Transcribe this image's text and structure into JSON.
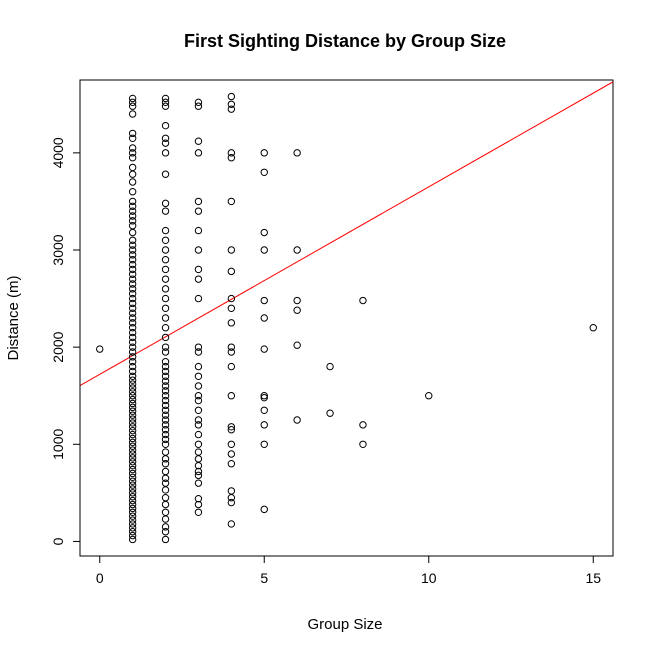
{
  "chart_data": {
    "type": "scatter",
    "title": "First Sighting Distance by Group Size",
    "xlabel": "Group Size",
    "ylabel": "Distance (m)",
    "xlim": [
      -0.6,
      15.6
    ],
    "ylim": [
      -150,
      4750
    ],
    "x_ticks": [
      0,
      5,
      10,
      15
    ],
    "y_ticks": [
      0,
      1000,
      2000,
      3000,
      4000
    ],
    "grid": false,
    "point_color": "#000000",
    "regression_line": {
      "color": "#ff0000",
      "intercept": 1720,
      "slope": 193
    },
    "points": [
      [
        0,
        1980
      ],
      [
        1,
        20
      ],
      [
        1,
        60
      ],
      [
        1,
        100
      ],
      [
        1,
        140
      ],
      [
        1,
        180
      ],
      [
        1,
        220
      ],
      [
        1,
        260
      ],
      [
        1,
        300
      ],
      [
        1,
        340
      ],
      [
        1,
        380
      ],
      [
        1,
        420
      ],
      [
        1,
        460
      ],
      [
        1,
        500
      ],
      [
        1,
        540
      ],
      [
        1,
        580
      ],
      [
        1,
        620
      ],
      [
        1,
        660
      ],
      [
        1,
        700
      ],
      [
        1,
        740
      ],
      [
        1,
        780
      ],
      [
        1,
        820
      ],
      [
        1,
        860
      ],
      [
        1,
        900
      ],
      [
        1,
        940
      ],
      [
        1,
        980
      ],
      [
        1,
        1020
      ],
      [
        1,
        1060
      ],
      [
        1,
        1100
      ],
      [
        1,
        1140
      ],
      [
        1,
        1180
      ],
      [
        1,
        1220
      ],
      [
        1,
        1260
      ],
      [
        1,
        1300
      ],
      [
        1,
        1340
      ],
      [
        1,
        1380
      ],
      [
        1,
        1420
      ],
      [
        1,
        1460
      ],
      [
        1,
        1500
      ],
      [
        1,
        1540
      ],
      [
        1,
        1580
      ],
      [
        1,
        1620
      ],
      [
        1,
        1660
      ],
      [
        1,
        1700
      ],
      [
        1,
        1750
      ],
      [
        1,
        1800
      ],
      [
        1,
        1850
      ],
      [
        1,
        1900
      ],
      [
        1,
        1950
      ],
      [
        1,
        2000
      ],
      [
        1,
        2050
      ],
      [
        1,
        2100
      ],
      [
        1,
        2150
      ],
      [
        1,
        2200
      ],
      [
        1,
        2250
      ],
      [
        1,
        2300
      ],
      [
        1,
        2350
      ],
      [
        1,
        2400
      ],
      [
        1,
        2450
      ],
      [
        1,
        2500
      ],
      [
        1,
        2550
      ],
      [
        1,
        2600
      ],
      [
        1,
        2650
      ],
      [
        1,
        2700
      ],
      [
        1,
        2750
      ],
      [
        1,
        2800
      ],
      [
        1,
        2850
      ],
      [
        1,
        2900
      ],
      [
        1,
        2950
      ],
      [
        1,
        3000
      ],
      [
        1,
        3050
      ],
      [
        1,
        3100
      ],
      [
        1,
        3180
      ],
      [
        1,
        3250
      ],
      [
        1,
        3300
      ],
      [
        1,
        3350
      ],
      [
        1,
        3400
      ],
      [
        1,
        3450
      ],
      [
        1,
        3500
      ],
      [
        1,
        3600
      ],
      [
        1,
        3700
      ],
      [
        1,
        3780
      ],
      [
        1,
        3850
      ],
      [
        1,
        3950
      ],
      [
        1,
        4000
      ],
      [
        1,
        4050
      ],
      [
        1,
        4150
      ],
      [
        1,
        4200
      ],
      [
        1,
        4400
      ],
      [
        1,
        4480
      ],
      [
        1,
        4520
      ],
      [
        1,
        4560
      ],
      [
        2,
        20
      ],
      [
        2,
        100
      ],
      [
        2,
        150
      ],
      [
        2,
        230
      ],
      [
        2,
        300
      ],
      [
        2,
        380
      ],
      [
        2,
        450
      ],
      [
        2,
        530
      ],
      [
        2,
        600
      ],
      [
        2,
        650
      ],
      [
        2,
        720
      ],
      [
        2,
        800
      ],
      [
        2,
        850
      ],
      [
        2,
        920
      ],
      [
        2,
        1000
      ],
      [
        2,
        1050
      ],
      [
        2,
        1100
      ],
      [
        2,
        1150
      ],
      [
        2,
        1200
      ],
      [
        2,
        1250
      ],
      [
        2,
        1300
      ],
      [
        2,
        1350
      ],
      [
        2,
        1400
      ],
      [
        2,
        1450
      ],
      [
        2,
        1500
      ],
      [
        2,
        1550
      ],
      [
        2,
        1600
      ],
      [
        2,
        1650
      ],
      [
        2,
        1700
      ],
      [
        2,
        1750
      ],
      [
        2,
        1800
      ],
      [
        2,
        1850
      ],
      [
        2,
        1950
      ],
      [
        2,
        2000
      ],
      [
        2,
        2100
      ],
      [
        2,
        2200
      ],
      [
        2,
        2300
      ],
      [
        2,
        2400
      ],
      [
        2,
        2500
      ],
      [
        2,
        2600
      ],
      [
        2,
        2700
      ],
      [
        2,
        2800
      ],
      [
        2,
        2900
      ],
      [
        2,
        3000
      ],
      [
        2,
        3100
      ],
      [
        2,
        3200
      ],
      [
        2,
        3400
      ],
      [
        2,
        3480
      ],
      [
        2,
        3780
      ],
      [
        2,
        4000
      ],
      [
        2,
        4100
      ],
      [
        2,
        4150
      ],
      [
        2,
        4280
      ],
      [
        2,
        4480
      ],
      [
        2,
        4520
      ],
      [
        2,
        4560
      ],
      [
        3,
        300
      ],
      [
        3,
        380
      ],
      [
        3,
        440
      ],
      [
        3,
        600
      ],
      [
        3,
        680
      ],
      [
        3,
        720
      ],
      [
        3,
        780
      ],
      [
        3,
        850
      ],
      [
        3,
        920
      ],
      [
        3,
        1000
      ],
      [
        3,
        1100
      ],
      [
        3,
        1200
      ],
      [
        3,
        1250
      ],
      [
        3,
        1350
      ],
      [
        3,
        1450
      ],
      [
        3,
        1500
      ],
      [
        3,
        1600
      ],
      [
        3,
        1700
      ],
      [
        3,
        1800
      ],
      [
        3,
        1950
      ],
      [
        3,
        2000
      ],
      [
        3,
        2500
      ],
      [
        3,
        2700
      ],
      [
        3,
        2800
      ],
      [
        3,
        3000
      ],
      [
        3,
        3200
      ],
      [
        3,
        3400
      ],
      [
        3,
        3500
      ],
      [
        3,
        4000
      ],
      [
        3,
        4120
      ],
      [
        3,
        4480
      ],
      [
        3,
        4520
      ],
      [
        4,
        180
      ],
      [
        4,
        400
      ],
      [
        4,
        450
      ],
      [
        4,
        520
      ],
      [
        4,
        800
      ],
      [
        4,
        900
      ],
      [
        4,
        1000
      ],
      [
        4,
        1150
      ],
      [
        4,
        1180
      ],
      [
        4,
        1500
      ],
      [
        4,
        1800
      ],
      [
        4,
        1950
      ],
      [
        4,
        2000
      ],
      [
        4,
        2250
      ],
      [
        4,
        2400
      ],
      [
        4,
        2500
      ],
      [
        4,
        2780
      ],
      [
        4,
        3000
      ],
      [
        4,
        3500
      ],
      [
        4,
        3950
      ],
      [
        4,
        4000
      ],
      [
        4,
        4450
      ],
      [
        4,
        4500
      ],
      [
        4,
        4580
      ],
      [
        5,
        330
      ],
      [
        5,
        1000
      ],
      [
        5,
        1200
      ],
      [
        5,
        1350
      ],
      [
        5,
        1480
      ],
      [
        5,
        1500
      ],
      [
        5,
        1980
      ],
      [
        5,
        2300
      ],
      [
        5,
        2480
      ],
      [
        5,
        3000
      ],
      [
        5,
        3180
      ],
      [
        5,
        3800
      ],
      [
        5,
        4000
      ],
      [
        6,
        1250
      ],
      [
        6,
        2020
      ],
      [
        6,
        2380
      ],
      [
        6,
        2480
      ],
      [
        6,
        3000
      ],
      [
        6,
        4000
      ],
      [
        7,
        1320
      ],
      [
        7,
        1800
      ],
      [
        8,
        1000
      ],
      [
        8,
        1200
      ],
      [
        8,
        2480
      ],
      [
        10,
        1500
      ],
      [
        15,
        2200
      ]
    ]
  }
}
